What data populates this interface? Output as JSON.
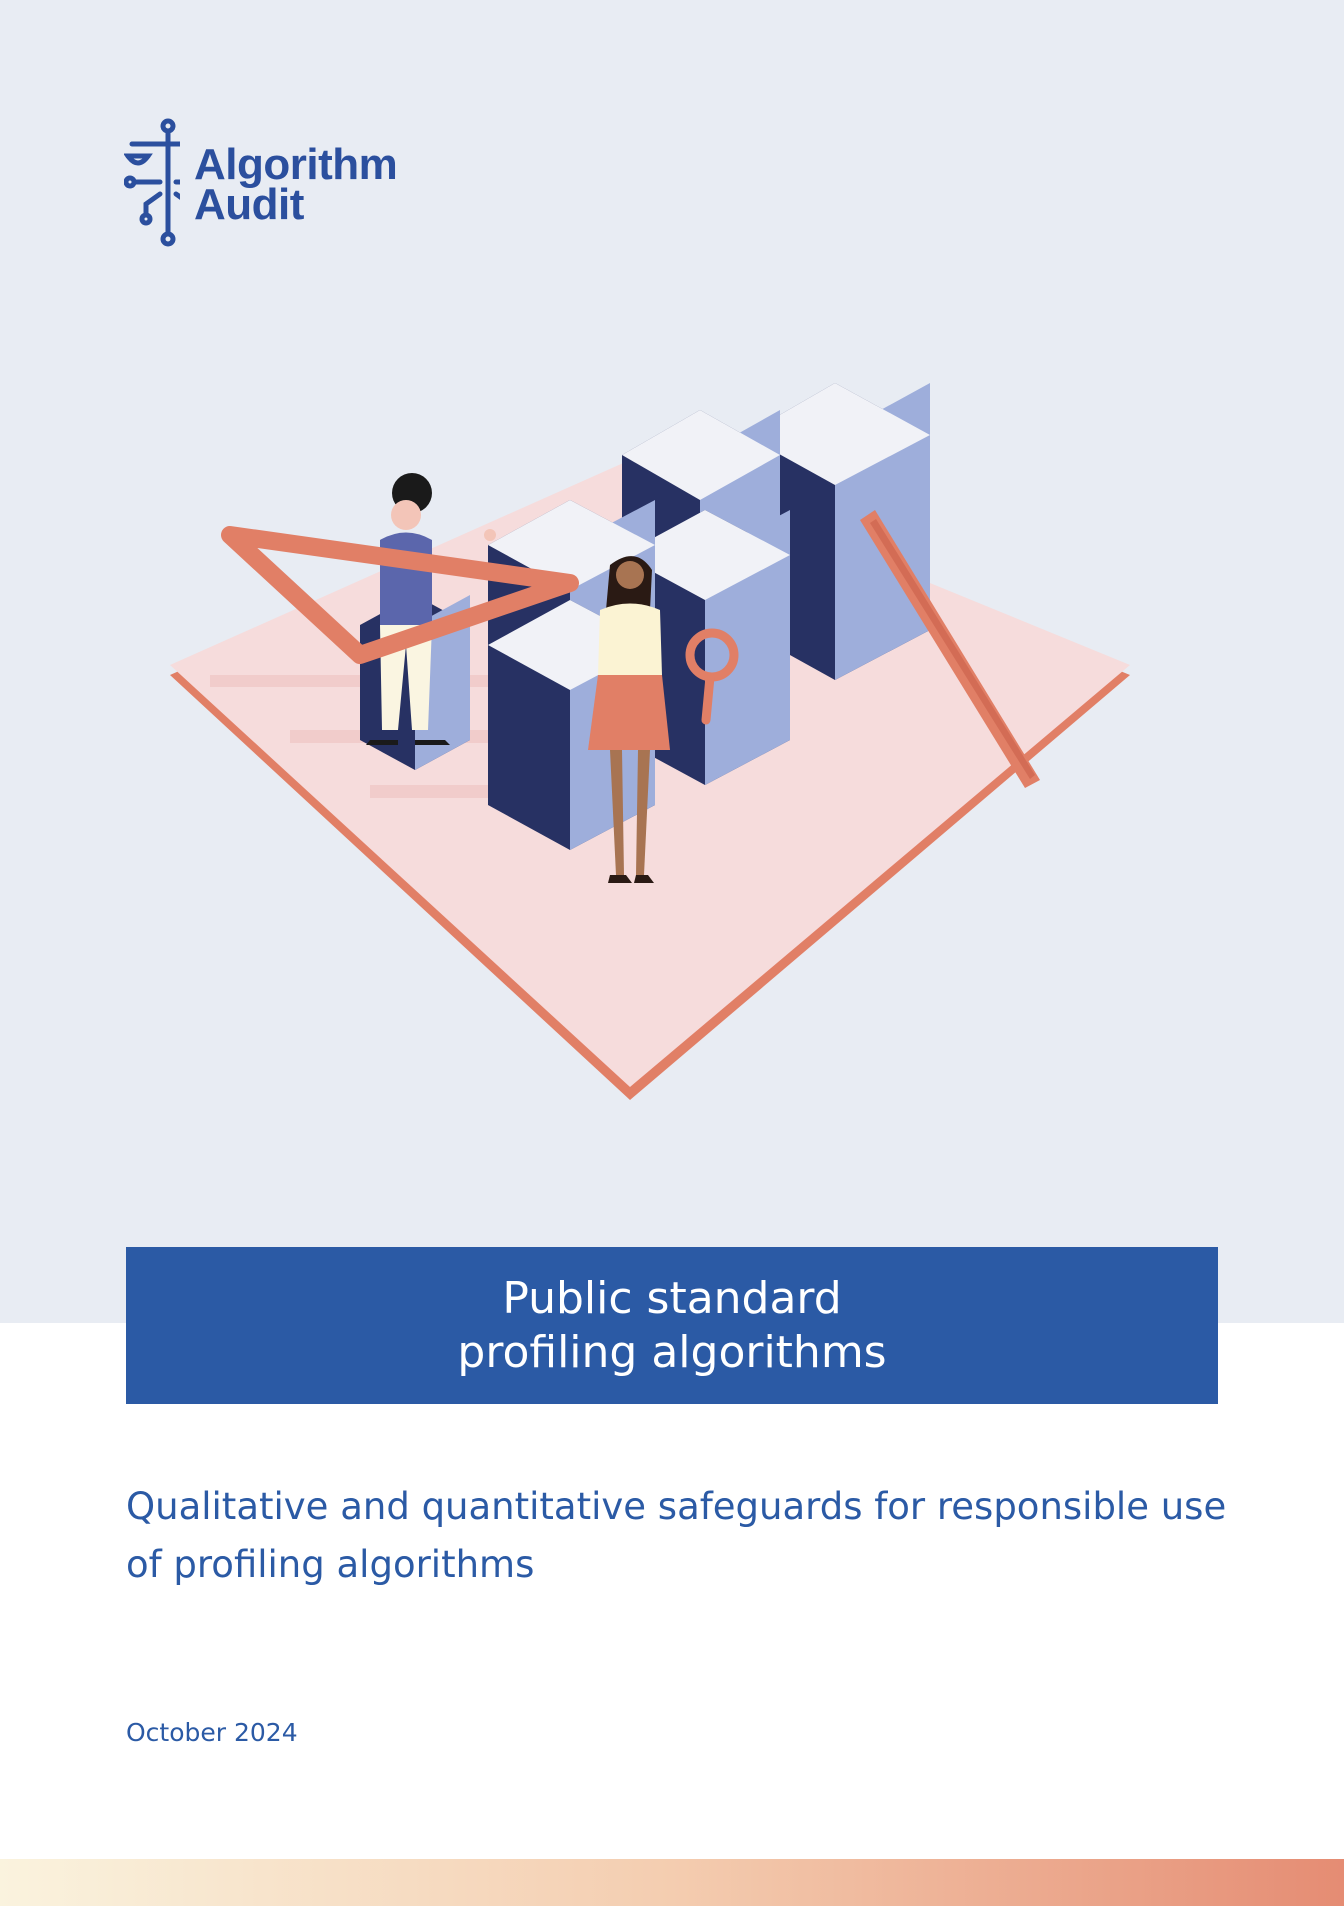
{
  "brand": {
    "name_line1": "Algorithm",
    "name_line2": "Audit"
  },
  "cover": {
    "title_line1": "Public standard",
    "title_line2": "profiling algorithms",
    "subtitle": "Qualitative and quantitative safeguards for responsible use of profiling algorithms",
    "date": "October 2024"
  },
  "colors": {
    "brand_blue": "#2b5aa5",
    "navy": "#273163",
    "panel_bg": "#e8ecf3",
    "coral": "#e17f66"
  },
  "illustration": {
    "description_icons": [
      "triangle-ruler-icon",
      "magnifying-glass-icon",
      "ruler-icon",
      "data-block-icon"
    ]
  }
}
